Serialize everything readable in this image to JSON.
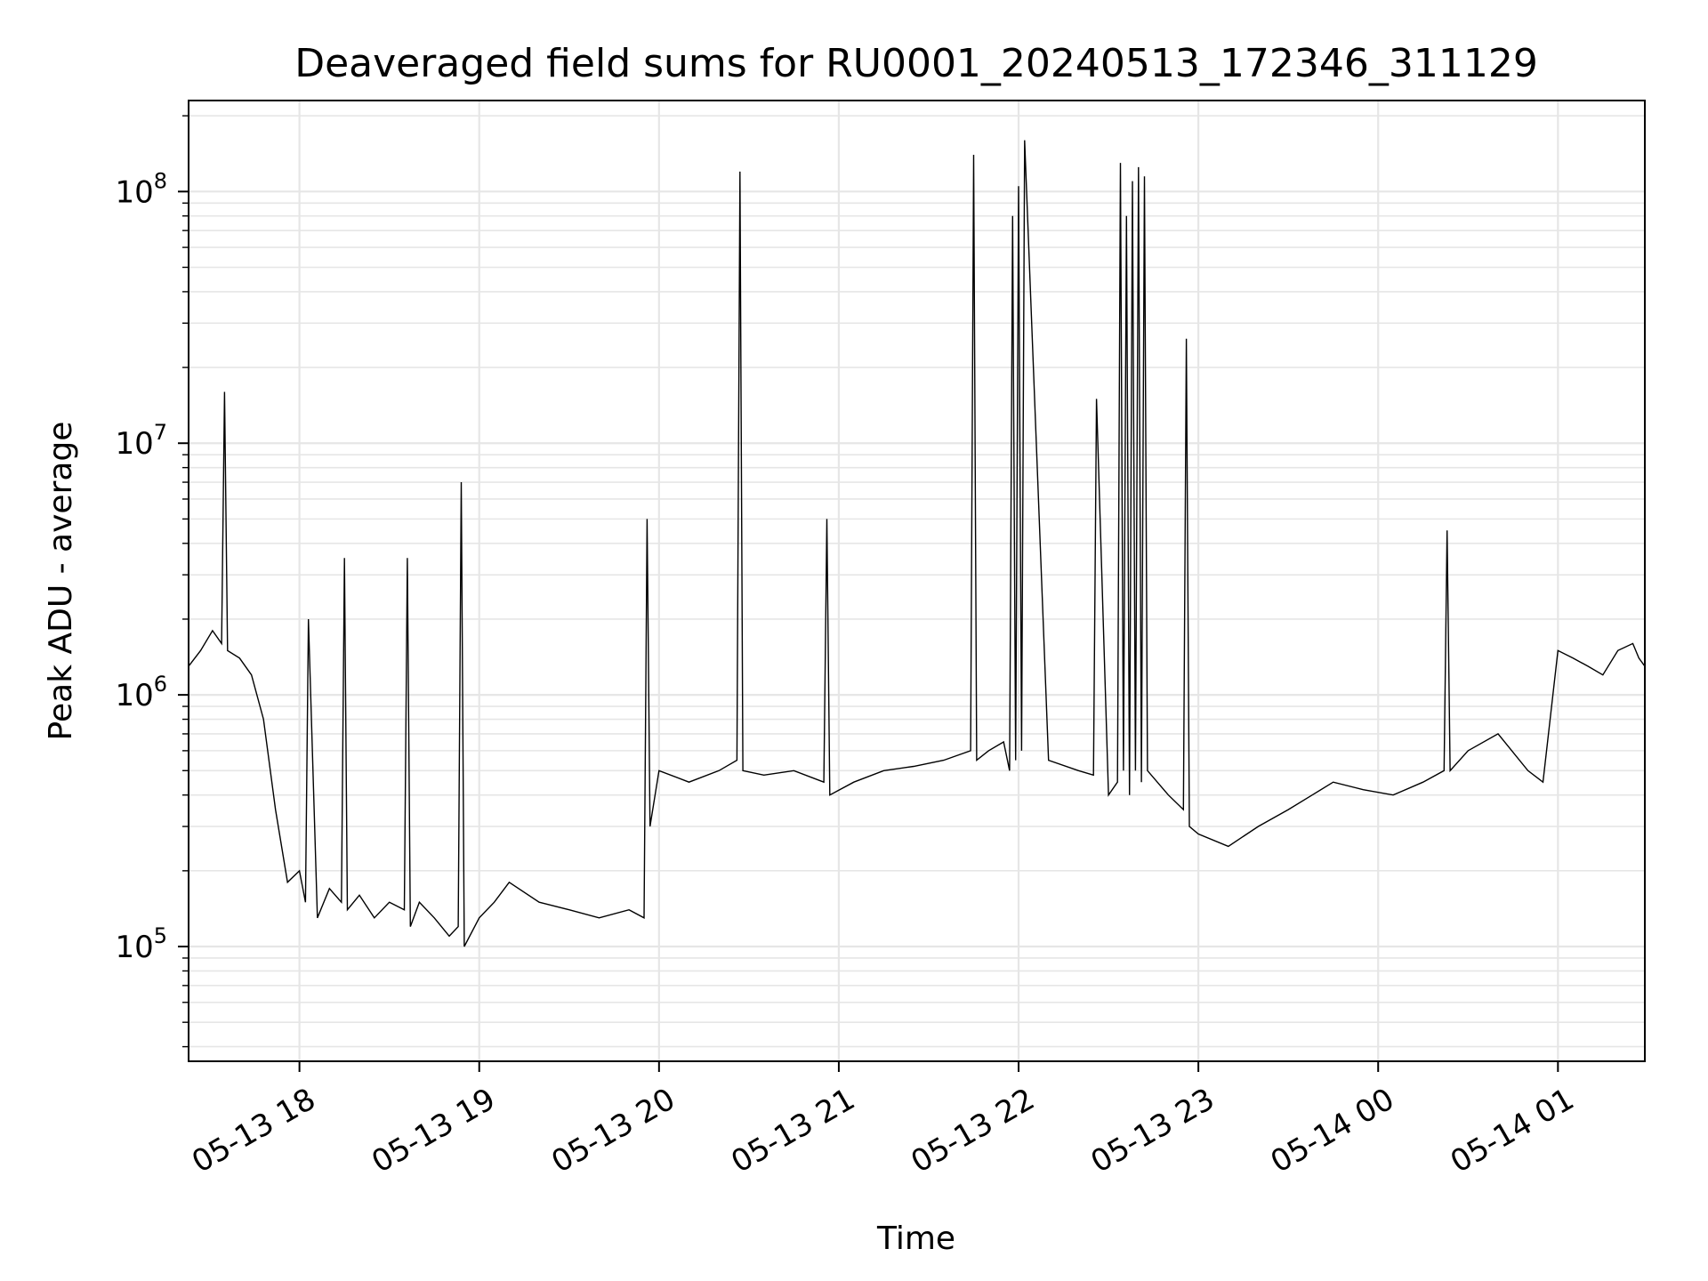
{
  "chart_data": {
    "type": "line",
    "title": "Deaveraged field sums for RU0001_20240513_172346_311129",
    "xlabel": "Time",
    "ylabel": "Peak ADU - average",
    "yscale": "log",
    "ylim": [
      35000,
      230000000
    ],
    "xlim": [
      "2024-05-13 17:23",
      "2024-05-14 01:29"
    ],
    "grid": true,
    "line_color": "#000000",
    "grid_color": "#e6e6e6",
    "x_ticks": [
      {
        "time": "2024-05-13 18:00",
        "label": "05-13 18"
      },
      {
        "time": "2024-05-13 19:00",
        "label": "05-13 19"
      },
      {
        "time": "2024-05-13 20:00",
        "label": "05-13 20"
      },
      {
        "time": "2024-05-13 21:00",
        "label": "05-13 21"
      },
      {
        "time": "2024-05-13 22:00",
        "label": "05-13 22"
      },
      {
        "time": "2024-05-13 23:00",
        "label": "05-13 23"
      },
      {
        "time": "2024-05-14 00:00",
        "label": "05-14 00"
      },
      {
        "time": "2024-05-14 01:00",
        "label": "05-14 01"
      }
    ],
    "y_ticks": [
      {
        "value": 100000,
        "base": "10",
        "exp": "5"
      },
      {
        "value": 1000000,
        "base": "10",
        "exp": "6"
      },
      {
        "value": 10000000,
        "base": "10",
        "exp": "7"
      },
      {
        "value": 100000000,
        "base": "10",
        "exp": "8"
      }
    ],
    "series": [
      {
        "x": [
          "2024-05-13 17:23",
          "2024-05-13 17:27",
          "2024-05-13 17:31",
          "2024-05-13 17:34",
          "2024-05-13 17:35",
          "2024-05-13 17:36",
          "2024-05-13 17:40",
          "2024-05-13 17:44",
          "2024-05-13 17:48",
          "2024-05-13 17:52",
          "2024-05-13 17:56",
          "2024-05-13 18:00",
          "2024-05-13 18:02",
          "2024-05-13 18:03",
          "2024-05-13 18:06",
          "2024-05-13 18:10",
          "2024-05-13 18:14",
          "2024-05-13 18:15",
          "2024-05-13 18:16",
          "2024-05-13 18:20",
          "2024-05-13 18:25",
          "2024-05-13 18:30",
          "2024-05-13 18:35",
          "2024-05-13 18:36",
          "2024-05-13 18:37",
          "2024-05-13 18:40",
          "2024-05-13 18:45",
          "2024-05-13 18:50",
          "2024-05-13 18:53",
          "2024-05-13 18:54",
          "2024-05-13 18:55",
          "2024-05-13 19:00",
          "2024-05-13 19:05",
          "2024-05-13 19:10",
          "2024-05-13 19:20",
          "2024-05-13 19:30",
          "2024-05-13 19:40",
          "2024-05-13 19:50",
          "2024-05-13 19:55",
          "2024-05-13 19:56",
          "2024-05-13 19:57",
          "2024-05-13 20:00",
          "2024-05-13 20:10",
          "2024-05-13 20:20",
          "2024-05-13 20:26",
          "2024-05-13 20:27",
          "2024-05-13 20:28",
          "2024-05-13 20:35",
          "2024-05-13 20:45",
          "2024-05-13 20:55",
          "2024-05-13 20:56",
          "2024-05-13 20:57",
          "2024-05-13 21:05",
          "2024-05-13 21:15",
          "2024-05-13 21:25",
          "2024-05-13 21:35",
          "2024-05-13 21:44",
          "2024-05-13 21:45",
          "2024-05-13 21:46",
          "2024-05-13 21:50",
          "2024-05-13 21:55",
          "2024-05-13 21:57",
          "2024-05-13 21:58",
          "2024-05-13 21:59",
          "2024-05-13 22:00",
          "2024-05-13 22:01",
          "2024-05-13 22:02",
          "2024-05-13 22:10",
          "2024-05-13 22:20",
          "2024-05-13 22:25",
          "2024-05-13 22:26",
          "2024-05-13 22:30",
          "2024-05-13 22:33",
          "2024-05-13 22:34",
          "2024-05-13 22:35",
          "2024-05-13 22:36",
          "2024-05-13 22:37",
          "2024-05-13 22:38",
          "2024-05-13 22:39",
          "2024-05-13 22:40",
          "2024-05-13 22:41",
          "2024-05-13 22:42",
          "2024-05-13 22:43",
          "2024-05-13 22:50",
          "2024-05-13 22:55",
          "2024-05-13 22:56",
          "2024-05-13 22:57",
          "2024-05-13 23:00",
          "2024-05-13 23:10",
          "2024-05-13 23:20",
          "2024-05-13 23:30",
          "2024-05-13 23:38",
          "2024-05-13 23:45",
          "2024-05-13 23:55",
          "2024-05-14 00:05",
          "2024-05-14 00:15",
          "2024-05-14 00:22",
          "2024-05-14 00:23",
          "2024-05-14 00:24",
          "2024-05-14 00:30",
          "2024-05-14 00:40",
          "2024-05-14 00:50",
          "2024-05-14 00:55",
          "2024-05-14 01:00",
          "2024-05-14 01:05",
          "2024-05-14 01:10",
          "2024-05-14 01:15",
          "2024-05-14 01:20",
          "2024-05-14 01:25",
          "2024-05-14 01:27",
          "2024-05-14 01:29"
        ],
        "values": [
          1300000,
          1500000,
          1800000,
          1600000,
          16000000,
          1500000,
          1400000,
          1200000,
          800000,
          350000,
          180000,
          200000,
          150000,
          2000000,
          130000,
          170000,
          150000,
          3500000,
          140000,
          160000,
          130000,
          150000,
          140000,
          3500000,
          120000,
          150000,
          130000,
          110000,
          120000,
          7000000,
          100000,
          130000,
          150000,
          180000,
          150000,
          140000,
          130000,
          140000,
          130000,
          5000000,
          300000,
          500000,
          450000,
          500000,
          550000,
          120000000,
          500000,
          480000,
          500000,
          450000,
          5000000,
          400000,
          450000,
          500000,
          520000,
          550000,
          600000,
          140000000,
          550000,
          600000,
          650000,
          500000,
          80000000,
          550000,
          105000000,
          600000,
          160000000,
          550000,
          500000,
          480000,
          15000000,
          400000,
          450000,
          130000000,
          500000,
          80000000,
          400000,
          110000000,
          500000,
          125000000,
          450000,
          115000000,
          500000,
          400000,
          350000,
          26000000,
          300000,
          280000,
          250000,
          300000,
          350000,
          400000,
          450000,
          420000,
          400000,
          450000,
          500000,
          4500000,
          500000,
          600000,
          700000,
          500000,
          450000,
          1500000,
          1400000,
          1300000,
          1200000,
          1500000,
          1600000,
          1400000,
          1300000
        ]
      }
    ]
  }
}
